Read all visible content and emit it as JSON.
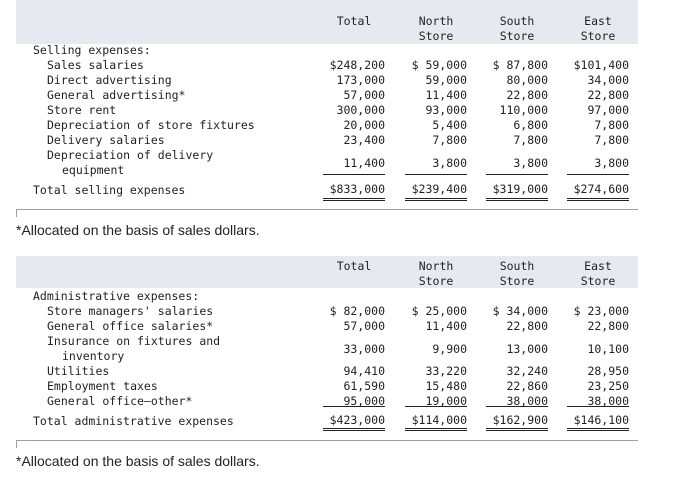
{
  "selling": {
    "col_headers": [
      {
        "l1": "",
        "l2": "Total"
      },
      {
        "l1": "North",
        "l2": "Store"
      },
      {
        "l1": "South",
        "l2": "Store"
      },
      {
        "l1": "East",
        "l2": "Store"
      }
    ],
    "section_label": "Selling expenses:",
    "rows": [
      {
        "label": "Sales salaries",
        "values": [
          "$248,200",
          "$ 59,000",
          "$ 87,800",
          "$101,400"
        ]
      },
      {
        "label": "Direct advertising",
        "values": [
          "173,000",
          "59,000",
          "80,000",
          "34,000"
        ]
      },
      {
        "label": "General advertising*",
        "values": [
          "57,000",
          "11,400",
          "22,800",
          "22,800"
        ]
      },
      {
        "label": "Store rent",
        "values": [
          "300,000",
          "93,000",
          "110,000",
          "97,000"
        ]
      },
      {
        "label": "Depreciation of store fixtures",
        "values": [
          "20,000",
          "5,400",
          "6,800",
          "7,800"
        ]
      },
      {
        "label": "Delivery salaries",
        "values": [
          "23,400",
          "7,800",
          "7,800",
          "7,800"
        ]
      },
      {
        "label": "Depreciation of delivery",
        "label2": "equipment",
        "values": [
          "11,400",
          "3,800",
          "3,800",
          "3,800"
        ]
      }
    ],
    "total": {
      "label": "Total selling expenses",
      "values": [
        "$833,000",
        "$239,400",
        "$319,000",
        "$274,600"
      ]
    },
    "footnote": "*Allocated on the basis of sales dollars."
  },
  "admin": {
    "col_headers": [
      {
        "l1": "",
        "l2": "Total"
      },
      {
        "l1": "North",
        "l2": "Store"
      },
      {
        "l1": "South",
        "l2": "Store"
      },
      {
        "l1": "East",
        "l2": "Store"
      }
    ],
    "section_label": "Administrative expenses:",
    "rows": [
      {
        "label": "Store managers' salaries",
        "values": [
          "$ 82,000",
          "$ 25,000",
          "$ 34,000",
          "$ 23,000"
        ]
      },
      {
        "label": "General office salaries*",
        "values": [
          "57,000",
          "11,400",
          "22,800",
          "22,800"
        ]
      },
      {
        "label": "Insurance on fixtures and",
        "label2": "inventory",
        "values": [
          "33,000",
          "9,900",
          "13,000",
          "10,100"
        ]
      },
      {
        "label": "Utilities",
        "values": [
          "94,410",
          "33,220",
          "32,240",
          "28,950"
        ]
      },
      {
        "label": "Employment taxes",
        "values": [
          "61,590",
          "15,480",
          "22,860",
          "23,250"
        ]
      },
      {
        "label": "General office—other*",
        "values": [
          "95,000",
          "19,000",
          "38,000",
          "38,000"
        ]
      }
    ],
    "total": {
      "label": "Total administrative expenses",
      "values": [
        "$423,000",
        "$114,000",
        "$162,900",
        "$146,100"
      ]
    },
    "footnote": "*Allocated on the basis of sales dollars."
  }
}
